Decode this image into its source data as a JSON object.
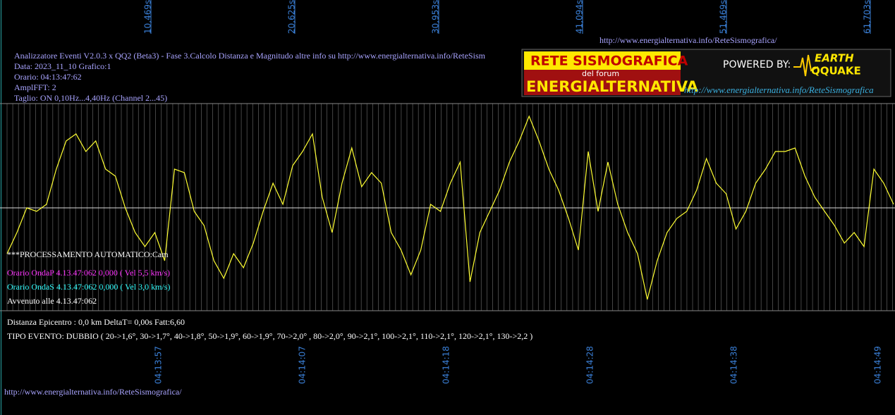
{
  "header": {
    "url_top": "http://www.energialternativa.info/ReteSismografica/",
    "lines": [
      "Analizzatore Eventi V2.0.3 x QQ2 (Beta3) - Fase 3.Calcolo Distanza e Magnitudo altre info su http://www.energialternativa.info/ReteSism",
      "Data: 2023_11_10 Grafico:1",
      "Orario: 04:13:47:62",
      "AmplFFT: 2",
      "Taglio: ON 0,10Hz...4,40Hz       (Channel 2...45)"
    ]
  },
  "logo": {
    "title": "RETE SISMOGRAFICA",
    "subtitle": "del forum",
    "name": "ENERGIALTERNATIVA",
    "powered": "POWERED BY:",
    "brand1": "EARTH",
    "brand2": "QQUAKE",
    "url": "http://www.energialternativa.info/ReteSismografica"
  },
  "top_axis": [
    "10,469s",
    "20,625s",
    "30,953s",
    "41,094s",
    "51,469s",
    "61,703s"
  ],
  "bottom_axis": [
    "04:13:57",
    "04:14:07",
    "04:14:18",
    "04:14:28",
    "04:14:38",
    "04:14:49"
  ],
  "overlay": {
    "processing": "***PROCESSAMENTO AUTOMATICO:Cam",
    "onda_p": "Orario OndaP 4.13.47:062  0,000 ( Vel 5,5 km/s)",
    "onda_s": "Orario OndaS 4.13.47:062  0,000 ( Vel 3,0 km/s)",
    "avvenuto": "Avvenuto alle 4.13.47:062",
    "distanza": "Distanza Epicentro : 0,0 km DeltaT= 0,00s  Fatt:6,60",
    "tipo": "TIPO EVENTO: DUBBIO ( 20->1,6°, 30->1,7°, 40->1,8°, 50->1,9°, 60->1,9°, 70->2,0° , 80->2,0°, 90->2,1°, 100->2,1°, 110->2,1°, 120->2,1°, 130->2,2 )"
  },
  "footer": {
    "url": "http://www.energialternativa.info/ReteSismografica/"
  },
  "chart_data": {
    "type": "line",
    "color": "#ffff33",
    "ylim": [
      -146,
      148
    ],
    "values": [
      -65,
      -35,
      0,
      -5,
      5,
      55,
      95,
      105,
      80,
      95,
      55,
      45,
      0,
      -35,
      -55,
      -35,
      -75,
      55,
      50,
      -5,
      -25,
      -75,
      -100,
      -65,
      -85,
      -50,
      -5,
      35,
      5,
      60,
      80,
      105,
      15,
      -35,
      35,
      85,
      30,
      50,
      35,
      -35,
      -60,
      -95,
      -60,
      5,
      -5,
      35,
      65,
      -105,
      -35,
      -5,
      25,
      65,
      95,
      130,
      95,
      55,
      25,
      -15,
      -60,
      80,
      -5,
      65,
      5,
      -35,
      -65,
      -130,
      -75,
      -35,
      -15,
      -5,
      25,
      70,
      35,
      20,
      -30,
      -5,
      35,
      55,
      80,
      80,
      85,
      45,
      15,
      -5,
      -25,
      -50,
      -35,
      -55,
      55,
      35,
      5
    ]
  }
}
